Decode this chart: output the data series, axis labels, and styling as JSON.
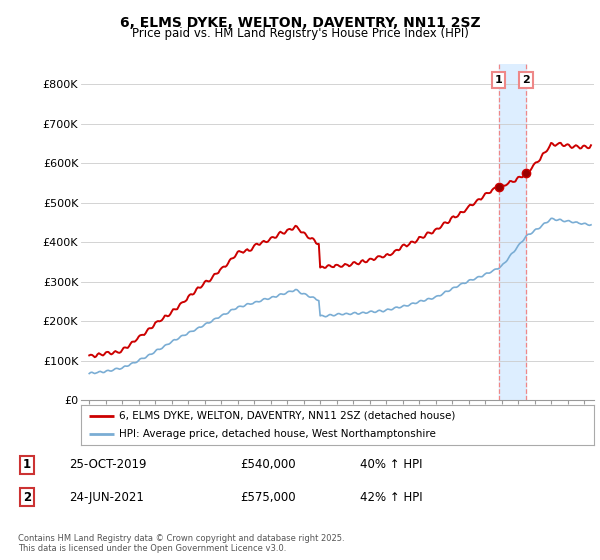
{
  "title": "6, ELMS DYKE, WELTON, DAVENTRY, NN11 2SZ",
  "subtitle": "Price paid vs. HM Land Registry's House Price Index (HPI)",
  "ylim": [
    0,
    850000
  ],
  "yticks": [
    0,
    100000,
    200000,
    300000,
    400000,
    500000,
    600000,
    700000,
    800000
  ],
  "ytick_labels": [
    "£0",
    "£100K",
    "£200K",
    "£300K",
    "£400K",
    "£500K",
    "£600K",
    "£700K",
    "£800K"
  ],
  "line1_color": "#cc0000",
  "line2_color": "#7aadd4",
  "sale1_date_year": 2019.82,
  "sale1_price": 540000,
  "sale2_date_year": 2021.48,
  "sale2_price": 575000,
  "vline_color": "#ee8888",
  "shade_color": "#ddeeff",
  "legend1_label": "6, ELMS DYKE, WELTON, DAVENTRY, NN11 2SZ (detached house)",
  "legend2_label": "HPI: Average price, detached house, West Northamptonshire",
  "table_row1": [
    "1",
    "25-OCT-2019",
    "£540,000",
    "40% ↑ HPI"
  ],
  "table_row2": [
    "2",
    "24-JUN-2021",
    "£575,000",
    "42% ↑ HPI"
  ],
  "footer": "Contains HM Land Registry data © Crown copyright and database right 2025.\nThis data is licensed under the Open Government Licence v3.0.",
  "bg_color": "#ffffff",
  "grid_color": "#cccccc",
  "xmin": 1994.5,
  "xmax": 2025.6
}
